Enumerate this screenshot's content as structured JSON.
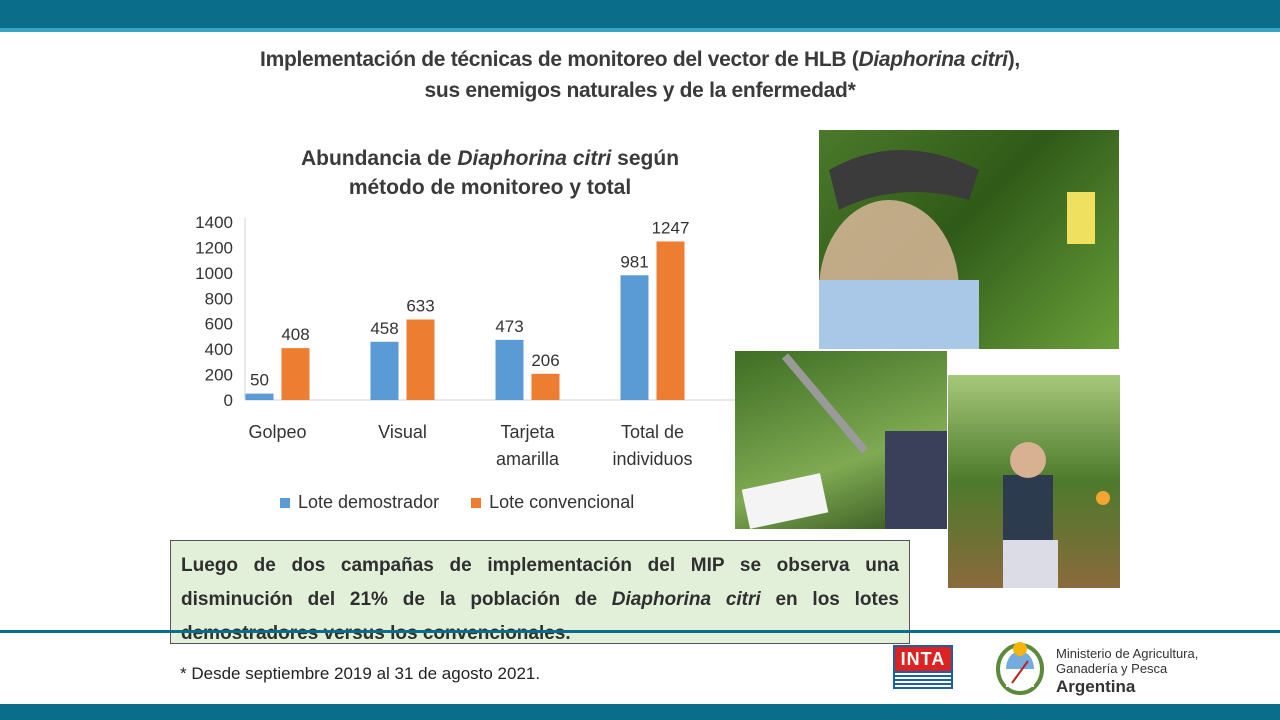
{
  "slide": {
    "title_line1_pre": "Implementación de técnicas de monitoreo del vector de HLB (",
    "title_line1_em": "Diaphorina citri",
    "title_line1_post": "),",
    "title_line2": "sus enemigos naturales y de la enfermedad*"
  },
  "chart_data": {
    "type": "bar",
    "title_pre": "Abundancia de ",
    "title_em": "Diaphorina citri",
    "title_post": " según",
    "title_line2": "método de monitoreo y total",
    "categories": [
      [
        "Golpeo"
      ],
      [
        "Visual"
      ],
      [
        "Tarjeta",
        "amarilla"
      ],
      [
        "Total de",
        "individuos"
      ]
    ],
    "series": [
      {
        "name": "Lote demostrador",
        "color": "#5b9bd5",
        "values": [
          50,
          458,
          473,
          981
        ]
      },
      {
        "name": "Lote convencional",
        "color": "#ed7d31",
        "values": [
          408,
          633,
          206,
          1247
        ]
      }
    ],
    "ylim": [
      0,
      1400
    ],
    "yticks": [
      0,
      200,
      400,
      600,
      800,
      1000,
      1200,
      1400
    ],
    "grid": false,
    "legend_position": "bottom"
  },
  "callout": {
    "part1": "Luego de dos campañas de implementación del MIP se observa una disminución del ",
    "highlight": "21% de la población de ",
    "em": "Diaphorina citri",
    "part2": " en los lotes demostradores versus los convencionales."
  },
  "footnote": "* Desde septiembre 2019 al 31 de agosto 2021.",
  "logos": {
    "inta": "INTA",
    "ministry_line1": "Ministerio de Agricultura,",
    "ministry_line2": "Ganadería y Pesca",
    "ministry_country": "Argentina"
  },
  "photos": [
    "monitoring-yellow-card-photo",
    "visual-inspection-photo",
    "field-worker-photo"
  ]
}
